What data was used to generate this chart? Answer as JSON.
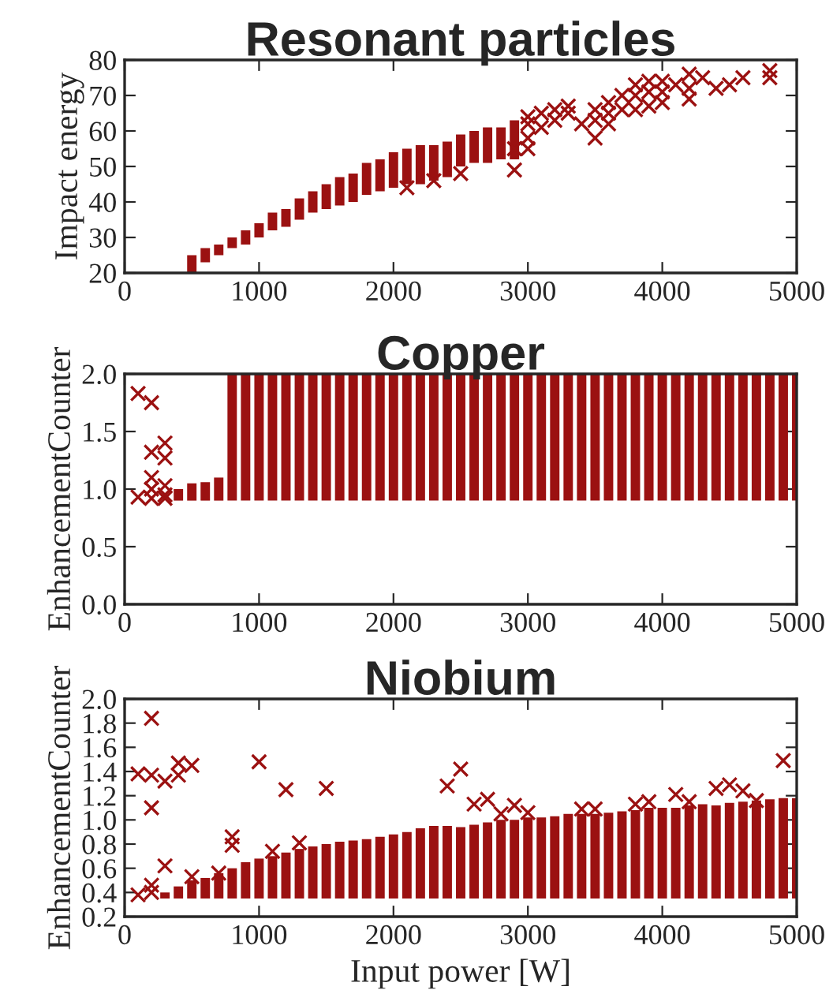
{
  "chart_data": [
    {
      "type": "scatter",
      "title": "Resonant particles",
      "ylabel": "Impact energy",
      "xlim": [
        0,
        5000
      ],
      "ylim": [
        20,
        80
      ],
      "xticks": [
        0,
        1000,
        2000,
        3000,
        4000,
        5000
      ],
      "yticks": [
        20,
        30,
        40,
        50,
        60,
        70,
        80
      ],
      "grid": false,
      "marker": "cross",
      "series": [
        {
          "type": "bar",
          "color": "#9b1111",
          "x": [
            500,
            600,
            700,
            800,
            900,
            1000,
            1100,
            1200,
            1300,
            1400,
            1500,
            1600,
            1700,
            1800,
            1900,
            2000,
            2100,
            2200,
            2300,
            2400,
            2500,
            2600,
            2700,
            2800,
            2900
          ],
          "base": [
            20,
            23,
            25,
            27,
            28,
            30,
            32,
            33,
            35,
            37,
            38,
            39,
            40,
            42,
            43,
            44,
            45,
            45,
            46,
            47,
            50,
            51,
            51,
            52,
            52
          ],
          "values": [
            5,
            4,
            3,
            3,
            4,
            4,
            5,
            5,
            6,
            6,
            7,
            8,
            8,
            9,
            9,
            10,
            10,
            11,
            10,
            10,
            9,
            9,
            10,
            9,
            11
          ]
        },
        {
          "color": "#9b1111",
          "x": [
            2100,
            2300,
            2500,
            2900,
            2900,
            3000,
            3000,
            3000,
            3000,
            3100,
            3100,
            3200,
            3200,
            3300,
            3300,
            3400,
            3500,
            3500,
            3500,
            3600,
            3600,
            3600,
            3700,
            3700,
            3800,
            3800,
            3800,
            3900,
            3900,
            3900,
            4000,
            4000,
            4000,
            4100,
            4200,
            4200,
            4200,
            4300,
            4400,
            4500,
            4600,
            4800,
            4800
          ],
          "values": [
            44,
            46,
            48,
            49,
            55,
            55,
            58,
            62,
            64,
            61,
            65,
            63,
            66,
            65,
            67,
            62,
            58,
            63,
            66,
            62,
            65,
            68,
            66,
            70,
            66,
            70,
            73,
            67,
            71,
            74,
            68,
            71,
            74,
            73,
            69,
            72,
            76,
            75,
            72,
            73,
            75,
            75,
            77
          ]
        }
      ]
    },
    {
      "type": "scatter",
      "title": "Copper",
      "ylabel": "EnhancementCounter",
      "xlim": [
        0,
        5000
      ],
      "ylim": [
        0,
        2
      ],
      "xticks": [
        0,
        1000,
        2000,
        3000,
        4000,
        5000
      ],
      "yticks": [
        {
          "value": 0,
          "label": "0.0"
        },
        {
          "value": 0.5,
          "label": "0.5"
        },
        {
          "value": 1,
          "label": "1.0"
        },
        {
          "value": 1.5,
          "label": "1.5"
        },
        {
          "value": 2,
          "label": "2.0"
        }
      ],
      "grid": false,
      "marker": "cross",
      "series": [
        {
          "type": "bar",
          "color": "#9b1111",
          "x": [
            400,
            500,
            600,
            700,
            800,
            900,
            1000,
            1100,
            1200,
            1300,
            1400,
            1500,
            1600,
            1700,
            1800,
            1900,
            2000,
            2100,
            2200,
            2300,
            2400,
            2500,
            2600,
            2700,
            2800,
            2900,
            3000,
            3100,
            3200,
            3300,
            3400,
            3500,
            3600,
            3700,
            3800,
            3900,
            4000,
            4100,
            4200,
            4300,
            4400,
            4500,
            4600,
            4700,
            4800,
            4900,
            5000
          ],
          "base": [
            0.9,
            0.9,
            0.9,
            0.9,
            0.9,
            0.9,
            0.9,
            0.9,
            0.9,
            0.9,
            0.9,
            0.9,
            0.9,
            0.9,
            0.9,
            0.9,
            0.9,
            0.9,
            0.9,
            0.9,
            0.9,
            0.9,
            0.9,
            0.9,
            0.9,
            0.9,
            0.9,
            0.9,
            0.9,
            0.9,
            0.9,
            0.9,
            0.9,
            0.9,
            0.9,
            0.9,
            0.9,
            0.9,
            0.9,
            0.9,
            0.9,
            0.9,
            0.9,
            0.9,
            0.9,
            0.9,
            0.9
          ],
          "values": [
            0.1,
            0.15,
            0.16,
            0.2,
            1.1,
            1.1,
            1.1,
            1.1,
            1.1,
            1.1,
            1.1,
            1.1,
            1.1,
            1.1,
            1.1,
            1.1,
            1.1,
            1.1,
            1.1,
            1.1,
            1.1,
            1.1,
            1.1,
            1.1,
            1.1,
            1.1,
            1.1,
            1.1,
            1.1,
            1.1,
            1.1,
            1.1,
            1.1,
            1.1,
            1.1,
            1.1,
            1.1,
            1.1,
            1.1,
            1.1,
            1.1,
            1.1,
            1.1,
            1.1,
            1.1,
            1.1,
            1.1
          ]
        },
        {
          "color": "#9b1111",
          "x": [
            100,
            100,
            200,
            200,
            200,
            200,
            200,
            300,
            300,
            300,
            300,
            300
          ],
          "values": [
            1.83,
            0.93,
            1.75,
            1.32,
            1.1,
            1.0,
            0.92,
            1.4,
            1.27,
            1.03,
            0.95,
            0.92
          ]
        }
      ]
    },
    {
      "type": "scatter",
      "title": "Niobium",
      "xlabel": "Input power [W]",
      "ylabel": "EnhancementCounter",
      "xlim": [
        0,
        5000
      ],
      "ylim": [
        0.2,
        2
      ],
      "xticks": [
        0,
        1000,
        2000,
        3000,
        4000,
        5000
      ],
      "yticks": [
        0.2,
        0.4,
        0.6,
        0.8,
        {
          "value": 1,
          "label": "1.0"
        },
        1.2,
        1.4,
        1.6,
        1.8,
        {
          "value": 2,
          "label": "2.0"
        }
      ],
      "grid": false,
      "marker": "cross",
      "series": [
        {
          "type": "bar",
          "color": "#9b1111",
          "x": [
            300,
            400,
            500,
            600,
            700,
            800,
            900,
            1000,
            1100,
            1200,
            1300,
            1400,
            1500,
            1600,
            1700,
            1800,
            1900,
            2000,
            2100,
            2200,
            2300,
            2400,
            2500,
            2600,
            2700,
            2800,
            2900,
            3000,
            3100,
            3200,
            3300,
            3400,
            3500,
            3600,
            3700,
            3800,
            3900,
            4000,
            4100,
            4200,
            4300,
            4400,
            4500,
            4600,
            4700,
            4800,
            4900,
            5000
          ],
          "base": [
            0.35,
            0.35,
            0.35,
            0.35,
            0.35,
            0.35,
            0.35,
            0.35,
            0.35,
            0.35,
            0.35,
            0.35,
            0.35,
            0.35,
            0.35,
            0.35,
            0.35,
            0.35,
            0.35,
            0.35,
            0.35,
            0.35,
            0.35,
            0.35,
            0.35,
            0.35,
            0.35,
            0.35,
            0.35,
            0.35,
            0.35,
            0.35,
            0.35,
            0.35,
            0.35,
            0.35,
            0.35,
            0.35,
            0.35,
            0.35,
            0.35,
            0.35,
            0.35,
            0.35,
            0.35,
            0.35,
            0.35,
            0.35
          ],
          "values": [
            0.05,
            0.1,
            0.15,
            0.17,
            0.21,
            0.25,
            0.3,
            0.33,
            0.35,
            0.38,
            0.41,
            0.43,
            0.45,
            0.47,
            0.48,
            0.49,
            0.51,
            0.53,
            0.55,
            0.58,
            0.6,
            0.6,
            0.59,
            0.61,
            0.63,
            0.65,
            0.65,
            0.67,
            0.67,
            0.68,
            0.7,
            0.7,
            0.7,
            0.71,
            0.72,
            0.73,
            0.75,
            0.75,
            0.75,
            0.77,
            0.78,
            0.77,
            0.79,
            0.8,
            0.81,
            0.82,
            0.83,
            0.83
          ]
        },
        {
          "color": "#9b1111",
          "x": [
            100,
            100,
            200,
            200,
            200,
            200,
            200,
            300,
            300,
            400,
            400,
            500,
            500,
            700,
            800,
            800,
            1000,
            1100,
            1200,
            1300,
            1500,
            2400,
            2500,
            2600,
            2700,
            2800,
            2900,
            3000,
            3400,
            3500,
            3800,
            3900,
            4100,
            4200,
            4400,
            4500,
            4600,
            4700,
            4900
          ],
          "values": [
            1.38,
            0.38,
            1.84,
            1.37,
            1.1,
            0.46,
            0.4,
            1.32,
            0.62,
            1.47,
            1.37,
            1.45,
            0.53,
            0.56,
            0.86,
            0.79,
            1.48,
            0.74,
            1.25,
            0.81,
            1.26,
            1.28,
            1.42,
            1.13,
            1.17,
            1.05,
            1.12,
            1.06,
            1.09,
            1.09,
            1.13,
            1.15,
            1.21,
            1.15,
            1.26,
            1.29,
            1.24,
            1.16,
            1.49
          ]
        }
      ]
    }
  ]
}
